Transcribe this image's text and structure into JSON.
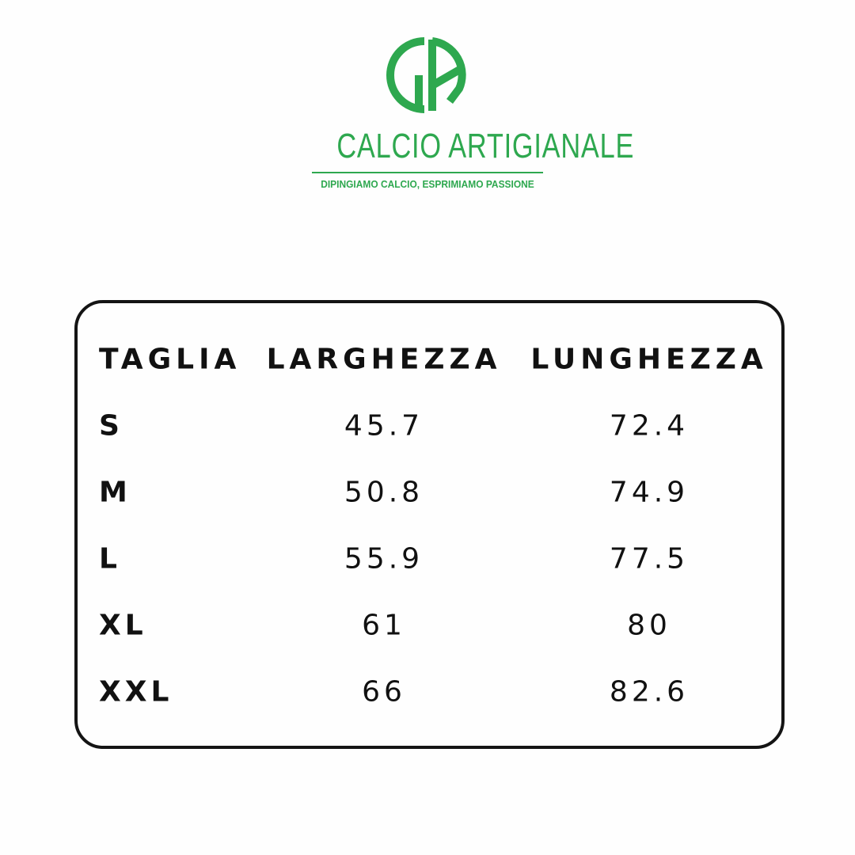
{
  "brand": {
    "name": "CALCIO ARTIGIANALE",
    "tagline": "DIPINGIAMO CALCIO, ESPRIMIAMO PASSIONE",
    "monogram": "CA",
    "color": "#2ea84f"
  },
  "table": {
    "headers": [
      "TAGLIA",
      "LARGHEZZA",
      "LUNGHEZZA"
    ],
    "rows": [
      {
        "size": "S",
        "width": "45.7",
        "length": "72.4"
      },
      {
        "size": "M",
        "width": "50.8",
        "length": "74.9"
      },
      {
        "size": "L",
        "width": "55.9",
        "length": "77.5"
      },
      {
        "size": "XL",
        "width": "61",
        "length": "80"
      },
      {
        "size": "XXL",
        "width": "66",
        "length": "82.6"
      }
    ]
  }
}
